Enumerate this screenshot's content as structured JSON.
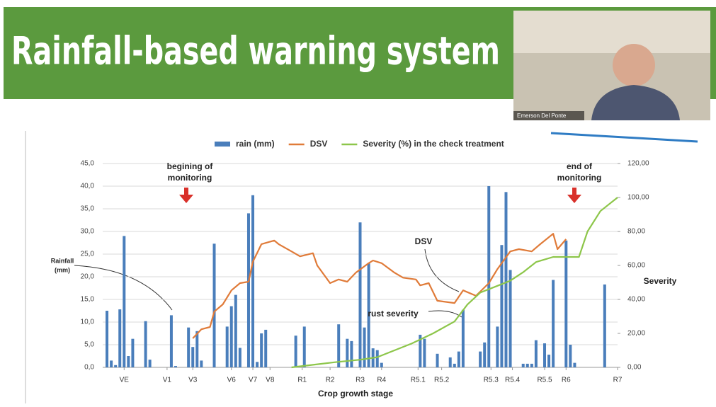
{
  "slide": {
    "title": "Rainfall-based warning system",
    "presenter": "Emerson Del Ponte"
  },
  "chart_data": {
    "type": "bar_line",
    "x_label": "Crop growth stage",
    "y2_label": "Severity",
    "annotations": [
      {
        "lines": [
          "begining of",
          "monitoring"
        ]
      },
      {
        "lines": [
          "end of",
          "monitoring"
        ]
      },
      {
        "lines": [
          "DSV"
        ]
      },
      {
        "lines": [
          "rust severity"
        ]
      },
      {
        "lines": [
          "Rainfall",
          "(mm)"
        ]
      }
    ],
    "xlim": [
      0,
      120
    ],
    "xticks": [
      {
        "value": 5,
        "label": "VE"
      },
      {
        "value": 15,
        "label": "V1"
      },
      {
        "value": 21,
        "label": "V3"
      },
      {
        "value": 30,
        "label": "V6"
      },
      {
        "value": 35,
        "label": "V7"
      },
      {
        "value": 39,
        "label": "V8"
      },
      {
        "value": 46.5,
        "label": "R1"
      },
      {
        "value": 53,
        "label": "R2"
      },
      {
        "value": 60,
        "label": "R3"
      },
      {
        "value": 65,
        "label": "R4"
      },
      {
        "value": 73.5,
        "label": "R5.1"
      },
      {
        "value": 79,
        "label": "R5.2"
      },
      {
        "value": 90.5,
        "label": "R5.3"
      },
      {
        "value": 95.5,
        "label": "R5.4"
      },
      {
        "value": 103,
        "label": "R5.5"
      },
      {
        "value": 108,
        "label": "R6"
      },
      {
        "value": 120,
        "label": "R7"
      }
    ],
    "ylim": [
      0,
      45
    ],
    "yticks": [
      {
        "value": 0,
        "label": "0,0"
      },
      {
        "value": 5,
        "label": "5,0"
      },
      {
        "value": 10,
        "label": "10,0"
      },
      {
        "value": 15,
        "label": "15,0"
      },
      {
        "value": 20,
        "label": "20,0"
      },
      {
        "value": 25,
        "label": "25,0"
      },
      {
        "value": 30,
        "label": "30,0"
      },
      {
        "value": 35,
        "label": "35,0"
      },
      {
        "value": 40,
        "label": "40,0"
      },
      {
        "value": 45,
        "label": "45,0"
      }
    ],
    "y2lim": [
      0,
      120
    ],
    "y2ticks": [
      {
        "value": 0,
        "label": "0,00"
      },
      {
        "value": 20,
        "label": "20,00"
      },
      {
        "value": 40,
        "label": "40,00"
      },
      {
        "value": 60,
        "label": "60,00"
      },
      {
        "value": 80,
        "label": "80,00"
      },
      {
        "value": 100,
        "label": "100,00"
      },
      {
        "value": 120,
        "label": "120,00"
      }
    ],
    "grid": true,
    "series": [
      {
        "name": "rain (mm)",
        "type": "bar",
        "color": "#4a7ebb",
        "x": [
          1,
          2,
          3,
          4,
          5,
          6,
          7,
          10,
          11,
          16,
          17,
          20,
          21,
          22,
          23,
          26,
          29,
          30,
          31,
          32,
          34,
          35,
          36,
          37,
          38,
          45,
          47,
          55,
          57,
          58,
          60,
          61,
          62,
          63,
          64,
          65,
          74,
          75,
          78,
          81,
          82,
          83,
          84,
          88,
          89,
          90,
          92,
          93,
          94,
          95,
          98,
          99,
          100,
          101,
          103,
          104,
          105,
          108,
          109,
          110,
          117
        ],
        "values": [
          12.5,
          1.5,
          0.5,
          12.8,
          29,
          2.5,
          6.3,
          10.2,
          1.7,
          11.5,
          0.3,
          8.8,
          4.5,
          8,
          1.5,
          27.3,
          9,
          13.5,
          16,
          4.3,
          34,
          38,
          1.2,
          7.5,
          8.3,
          7,
          9,
          9.5,
          6.3,
          5.8,
          32,
          8.8,
          23,
          4.2,
          3.8,
          1,
          7.2,
          6.3,
          3,
          2.2,
          0.8,
          3.5,
          12.7,
          3.5,
          5.5,
          40,
          9,
          27,
          38.7,
          21.5,
          0.8,
          0.8,
          0.8,
          6,
          5.3,
          2.8,
          19.3,
          28,
          5,
          1,
          18.3
        ]
      },
      {
        "name": "DSV",
        "type": "line",
        "color": "#e07b39",
        "x": [
          21,
          23,
          25,
          26,
          28,
          30,
          32,
          34,
          35,
          37,
          40,
          41,
          44,
          46,
          49,
          50,
          53,
          55,
          57,
          59,
          62,
          63,
          65,
          68,
          70,
          73,
          74,
          76,
          78,
          82,
          84,
          87,
          90,
          92,
          95,
          97,
          100,
          102,
          105,
          106,
          108
        ],
        "values": [
          6.4,
          8.4,
          8.9,
          12.3,
          13.9,
          17,
          18.6,
          18.9,
          23.3,
          27.2,
          28,
          27.2,
          25.6,
          24.5,
          25.2,
          22.5,
          18.6,
          19.4,
          18.9,
          20.9,
          23,
          23.6,
          23,
          20.9,
          19.8,
          19.4,
          18.1,
          18.6,
          14.7,
          14.2,
          17,
          15.8,
          18.6,
          21.7,
          25.6,
          26.1,
          25.6,
          27.2,
          29.5,
          26.1,
          28.3
        ]
      },
      {
        "name": "Severity (%) in the check treatment",
        "type": "line",
        "axis": "y2",
        "color": "#8dc64a",
        "x": [
          44,
          49,
          54,
          60,
          64,
          67,
          72,
          77,
          82,
          85,
          88,
          92,
          95,
          98,
          101,
          105,
          108,
          111,
          113,
          116,
          120
        ],
        "values": [
          0,
          1.5,
          3,
          4.5,
          6,
          9,
          14,
          20,
          27,
          37,
          44,
          48,
          51,
          56,
          62,
          65,
          65,
          65,
          80,
          92,
          100
        ]
      }
    ]
  }
}
